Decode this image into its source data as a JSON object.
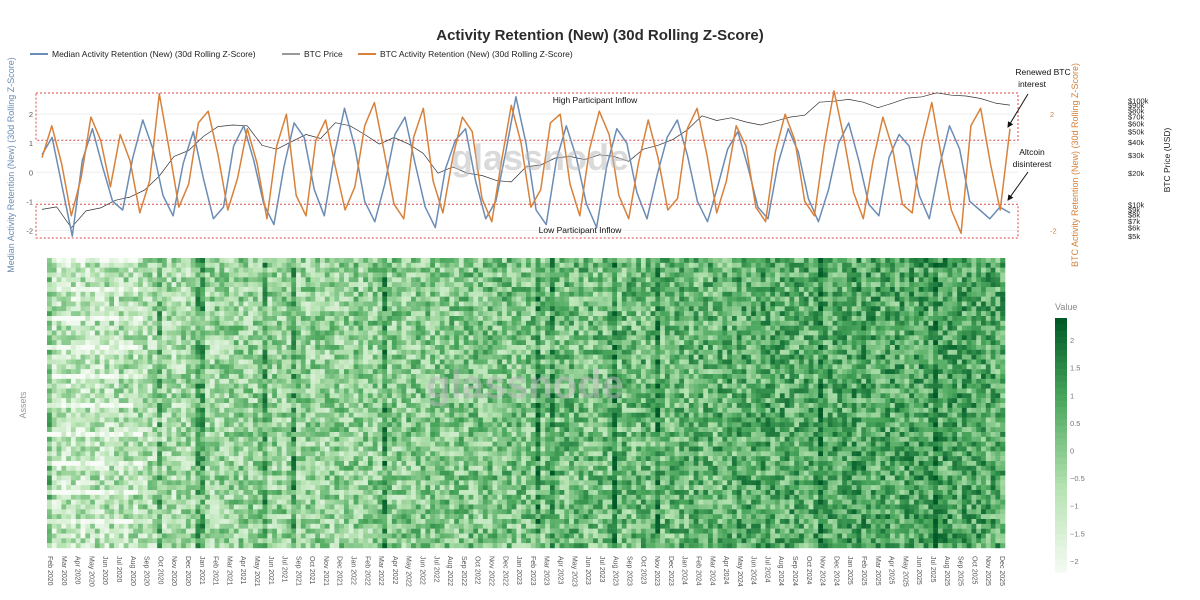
{
  "chart_data": [
    {
      "type": "line",
      "title": "Activity Retention (New) (30d Rolling Z-Score)",
      "ylabel_left": "Median Activity Retention (New) (30d Rolling Z-Score)",
      "ylabel_right": "BTC Activity Retention (New) (30d Rolling Z-Score)",
      "ylabel_price": "BTC Price (USD)",
      "left_ticks": [
        "2",
        "1",
        "0",
        "-1",
        "-2"
      ],
      "right_ticks": [
        "2",
        "-2"
      ],
      "price_ticks": [
        "$100k",
        "$90k",
        "$80k",
        "$70k",
        "$60k",
        "$50k",
        "$40k",
        "$30k",
        "$20k",
        "$10k",
        "$9k",
        "$8k",
        "$7k",
        "$6k",
        "$5k"
      ],
      "ylim": [
        -2.4,
        2.9
      ],
      "thresholds": [
        1.1,
        -1.1
      ],
      "series": [
        {
          "name": "Median Activity Retention (New) (30d Rolling Z-Score)",
          "color": "#6b8cb5",
          "values": [
            0.6,
            1.2,
            -0.5,
            -2.2,
            0.4,
            1.5,
            0.2,
            -1.0,
            -1.3,
            0.5,
            1.8,
            0.8,
            -0.8,
            -1.5,
            0.3,
            1.4,
            -0.2,
            -1.6,
            -1.2,
            0.9,
            1.6,
            0.4,
            -1.1,
            -1.8,
            0.2,
            1.7,
            1.2,
            -0.6,
            -1.5,
            0.6,
            2.2,
            0.9,
            -1.0,
            -1.7,
            -0.4,
            1.3,
            1.9,
            0.3,
            -1.2,
            -1.9,
            0.1,
            1.1,
            1.5,
            -0.3,
            -1.6,
            -1.0,
            0.7,
            2.6,
            1.0,
            -1.3,
            -1.8,
            0.4,
            1.6,
            0.5,
            -1.1,
            -1.9,
            0.2,
            1.5,
            1.0,
            -0.7,
            -1.6,
            -0.1,
            1.2,
            1.8,
            0.6,
            -1.0,
            -1.7,
            -0.5,
            0.8,
            1.4,
            0.2,
            -1.2,
            -1.6,
            0.3,
            1.5,
            0.7,
            -0.9,
            -1.7,
            -0.6,
            1.0,
            1.7,
            0.4,
            -1.1,
            -1.5,
            0.5,
            1.3,
            0.9,
            -0.8,
            -1.6,
            0.2,
            1.6,
            0.8,
            -1.0,
            -1.3,
            -1.6,
            -1.2,
            -1.4
          ]
        },
        {
          "name": "BTC Price",
          "color": "#333333",
          "values": [
            9000,
            9500,
            6000,
            8700,
            9300,
            11000,
            11800,
            13800,
            18800,
            29000,
            33000,
            45000,
            56000,
            58000,
            57000,
            37000,
            34000,
            40000,
            47000,
            43000,
            61000,
            57000,
            47000,
            38000,
            44000,
            38000,
            31000,
            20000,
            23000,
            20000,
            19000,
            17000,
            16500,
            23000,
            24000,
            28000,
            29000,
            27000,
            30000,
            29000,
            26000,
            34000,
            37000,
            42000,
            52000,
            71000,
            64000,
            68000,
            62000,
            58000,
            63000,
            69000,
            72000,
            96000,
            98000,
            102000,
            96000,
            85000,
            94000,
            105000,
            108000,
            118000,
            112000,
            110000,
            104000,
            94000,
            90000
          ]
        },
        {
          "name": "BTC Activity Retention (New) (30d Rolling Z-Score)",
          "color": "#d7813a",
          "values": [
            0.5,
            1.6,
            0.3,
            -1.5,
            -0.2,
            1.9,
            1.1,
            -0.5,
            1.3,
            0.4,
            -1.4,
            -0.3,
            2.7,
            0.8,
            -1.2,
            -0.4,
            1.7,
            2.1,
            0.6,
            -1.3,
            -0.2,
            1.5,
            0.3,
            -1.6,
            0.9,
            2.0,
            -0.8,
            -1.5,
            1.1,
            1.8,
            0.2,
            -1.3,
            -0.5,
            1.6,
            2.4,
            0.7,
            -1.1,
            -1.6,
            1.2,
            2.2,
            -0.3,
            -1.4,
            0.5,
            1.9,
            1.4,
            -0.9,
            -1.7,
            0.4,
            2.3,
            1.0,
            -1.2,
            -0.6,
            1.7,
            2.0,
            -0.4,
            -1.5,
            0.8,
            2.1,
            1.3,
            -0.8,
            -1.6,
            0.3,
            1.8,
            0.5,
            -1.3,
            -0.9,
            1.5,
            2.2,
            0.6,
            -1.4,
            -0.3,
            1.6,
            0.9,
            -1.2,
            -1.7,
            0.7,
            2.0,
            1.1,
            -1.0,
            -1.5,
            0.9,
            2.8,
            1.2,
            -0.7,
            -1.6,
            0.4,
            1.9,
            0.8,
            -1.1,
            -1.4,
            1.0,
            2.4,
            0.5,
            -1.3,
            -2.1,
            1.6,
            2.2,
            0.3,
            -1.3,
            1.5
          ]
        }
      ],
      "annotations": {
        "high_band": "High Participant Inflow",
        "low_band": "Low Participant Inflow",
        "renewed": [
          "Renewed BTC",
          "interest"
        ],
        "altcoin": [
          "Altcoin",
          "disinterest"
        ]
      },
      "watermark": "glassnode"
    },
    {
      "type": "heatmap",
      "ylabel": "Assets",
      "colorbar_title": "Value",
      "colorbar_ticks": [
        "2",
        "1.5",
        "1",
        "0.5",
        "0",
        "−0.5",
        "−1",
        "−1.5",
        "−2"
      ],
      "zlim": [
        -2.2,
        2.4
      ],
      "activity_by_period": [
        0.25,
        0.22,
        0.28,
        0.3,
        0.32,
        0.35,
        0.38,
        0.42,
        0.45,
        0.48,
        0.5,
        0.5,
        0.52,
        0.5,
        0.5,
        0.52,
        0.55,
        0.56,
        0.58,
        0.6,
        0.62,
        0.62,
        0.64,
        0.66,
        0.66,
        0.68,
        0.7,
        0.72,
        0.72,
        0.74,
        0.75,
        0.76,
        0.78,
        0.8,
        0.82,
        0.85,
        0.88,
        0.9,
        0.88,
        0.86,
        0.9,
        0.92,
        0.95,
        0.92,
        0.9,
        0.94,
        0.96,
        0.94,
        0.92,
        0.9
      ],
      "categories": [
        "Feb 2020",
        "Mar 2020",
        "Apr 2020",
        "May 2020",
        "Jun 2020",
        "Jul 2020",
        "Aug 2020",
        "Sep 2020",
        "Oct 2020",
        "Nov 2020",
        "Dec 2020",
        "Jan 2021",
        "Feb 2021",
        "Mar 2021",
        "Apr 2021",
        "May 2021",
        "Jun 2021",
        "Jul 2021",
        "Sep 2021",
        "Oct 2021",
        "Nov 2021",
        "Dec 2021",
        "Jan 2022",
        "Feb 2022",
        "Mar 2022",
        "Apr 2022",
        "May 2022",
        "Jun 2022",
        "Jul 2022",
        "Aug 2022",
        "Sep 2022",
        "Oct 2022",
        "Nov 2022",
        "Dec 2022",
        "Jan 2023",
        "Feb 2023",
        "Mar 2023",
        "Apr 2023",
        "May 2023",
        "Jun 2023",
        "Jul 2023",
        "Aug 2023",
        "Sep 2023",
        "Oct 2023",
        "Nov 2023",
        "Dec 2023",
        "Jan 2024",
        "Feb 2024",
        "Mar 2024",
        "Apr 2024",
        "May 2024",
        "Jun 2024",
        "Jul 2024",
        "Aug 2024",
        "Sep 2024",
        "Oct 2024",
        "Nov 2024",
        "Dec 2024",
        "Jan 2025",
        "Feb 2025",
        "Mar 2025",
        "Apr 2025",
        "May 2025",
        "Jun 2025",
        "Jul 2025",
        "Aug 2025",
        "Sep 2025",
        "Oct 2025",
        "Nov 2025",
        "Dec 2025"
      ]
    }
  ]
}
